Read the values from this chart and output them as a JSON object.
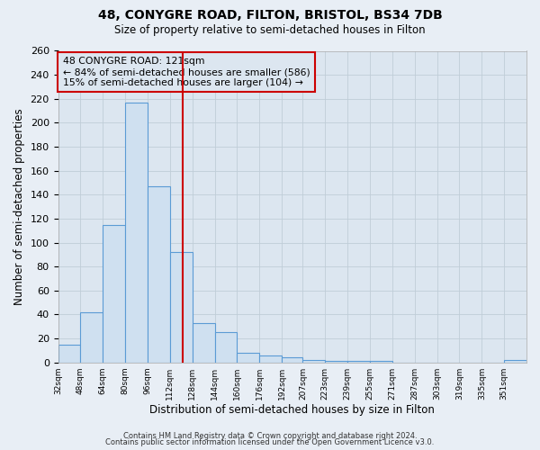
{
  "title": "48, CONYGRE ROAD, FILTON, BRISTOL, BS34 7DB",
  "subtitle": "Size of property relative to semi-detached houses in Filton",
  "xlabel": "Distribution of semi-detached houses by size in Filton",
  "ylabel": "Number of semi-detached properties",
  "bar_values": [
    15,
    42,
    115,
    217,
    147,
    92,
    33,
    25,
    8,
    6,
    4,
    2,
    1,
    1,
    1,
    0,
    0,
    0,
    0,
    0,
    2
  ],
  "bin_edges": [
    32,
    48,
    64,
    80,
    96,
    112,
    128,
    144,
    160,
    176,
    192,
    207,
    223,
    239,
    255,
    271,
    287,
    303,
    319,
    335,
    351,
    367
  ],
  "tick_labels": [
    "32sqm",
    "48sqm",
    "64sqm",
    "80sqm",
    "96sqm",
    "112sqm",
    "128sqm",
    "144sqm",
    "160sqm",
    "176sqm",
    "192sqm",
    "207sqm",
    "223sqm",
    "239sqm",
    "255sqm",
    "271sqm",
    "287sqm",
    "303sqm",
    "319sqm",
    "335sqm",
    "351sqm"
  ],
  "bar_color": "#cfe0f0",
  "bar_edge_color": "#5b9bd5",
  "property_value": 121,
  "vline_color": "#cc0000",
  "annotation_title": "48 CONYGRE ROAD: 121sqm",
  "annotation_line1": "← 84% of semi-detached houses are smaller (586)",
  "annotation_line2": "15% of semi-detached houses are larger (104) →",
  "annotation_box_color": "#cc0000",
  "ylim": [
    0,
    260
  ],
  "yticks": [
    0,
    20,
    40,
    60,
    80,
    100,
    120,
    140,
    160,
    180,
    200,
    220,
    240,
    260
  ],
  "footer1": "Contains HM Land Registry data © Crown copyright and database right 2024.",
  "footer2": "Contains public sector information licensed under the Open Government Licence v3.0.",
  "bg_color": "#e8eef5",
  "plot_bg_color": "#dce6f0",
  "grid_color": "#c0cdd8"
}
